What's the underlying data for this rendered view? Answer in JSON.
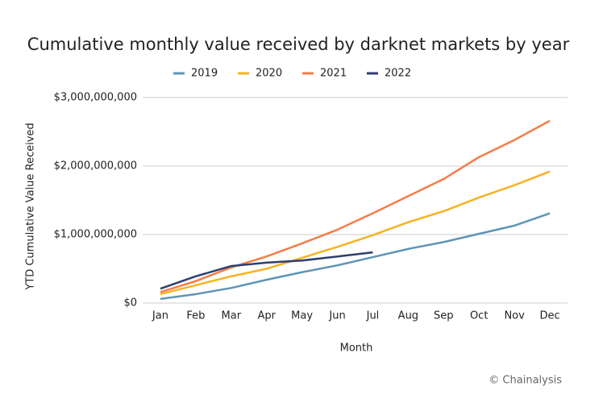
{
  "chart_data": {
    "type": "line",
    "title": "Cumulative monthly value received by darknet markets by year",
    "x_label": "Month",
    "y_label": "YTD Cumulative Value Received",
    "source": "© Chainalysis",
    "categories": [
      "Jan",
      "Feb",
      "Mar",
      "Apr",
      "May",
      "Jun",
      "Jul",
      "Aug",
      "Sep",
      "Oct",
      "Nov",
      "Dec"
    ],
    "series": [
      {
        "name": "2019",
        "color": "#5f95b6",
        "values": [
          60000000,
          130000000,
          220000000,
          340000000,
          450000000,
          550000000,
          670000000,
          790000000,
          890000000,
          1010000000,
          1130000000,
          1310000000
        ]
      },
      {
        "name": "2020",
        "color": "#f5b324",
        "values": [
          130000000,
          260000000,
          390000000,
          500000000,
          660000000,
          820000000,
          990000000,
          1180000000,
          1340000000,
          1540000000,
          1720000000,
          1920000000
        ]
      },
      {
        "name": "2021",
        "color": "#f57c47",
        "values": [
          160000000,
          320000000,
          520000000,
          680000000,
          870000000,
          1070000000,
          1310000000,
          1560000000,
          1810000000,
          2130000000,
          2380000000,
          2660000000
        ]
      },
      {
        "name": "2022",
        "color": "#2e3f6e",
        "values": [
          210000000,
          390000000,
          540000000,
          590000000,
          620000000,
          680000000,
          740000000,
          null,
          null,
          null,
          null,
          null
        ]
      }
    ],
    "ylim": [
      0,
      3000000000
    ],
    "yticks": [
      {
        "value": 0,
        "label": "$0"
      },
      {
        "value": 1000000000,
        "label": "$1,000,000,000"
      },
      {
        "value": 2000000000,
        "label": "$2,000,000,000"
      },
      {
        "value": 3000000000,
        "label": "$3,000,000,000"
      }
    ],
    "grid": true,
    "legend": "top"
  }
}
